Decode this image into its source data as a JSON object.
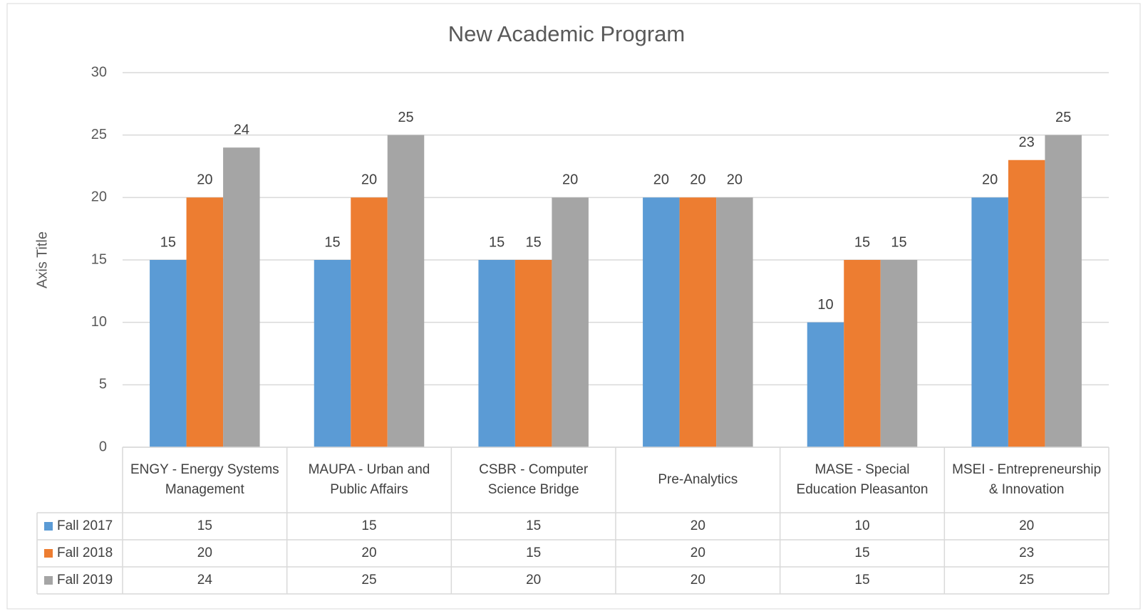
{
  "chart_data": {
    "type": "bar",
    "title": "New Academic Program",
    "y_axis_label": "Axis Title",
    "categories": [
      "ENGY - Energy Systems Management",
      "MAUPA - Urban and Public Affairs",
      "CSBR - Computer Science Bridge",
      "Pre-Analytics",
      "MASE - Special Education Pleasanton",
      "MSEI - Entrepreneurship & Innovation"
    ],
    "series": [
      {
        "name": "Fall 2017",
        "color": "#5b9bd5",
        "values": [
          15,
          15,
          15,
          20,
          10,
          20
        ]
      },
      {
        "name": "Fall 2018",
        "color": "#ed7d31",
        "values": [
          20,
          20,
          15,
          20,
          15,
          23
        ]
      },
      {
        "name": "Fall 2019",
        "color": "#a5a5a5",
        "values": [
          24,
          25,
          20,
          20,
          15,
          25
        ]
      }
    ],
    "ylim": [
      0,
      30
    ],
    "yticks": [
      0,
      5,
      10,
      15,
      20,
      25,
      30
    ],
    "grid": true,
    "data_table": true
  }
}
